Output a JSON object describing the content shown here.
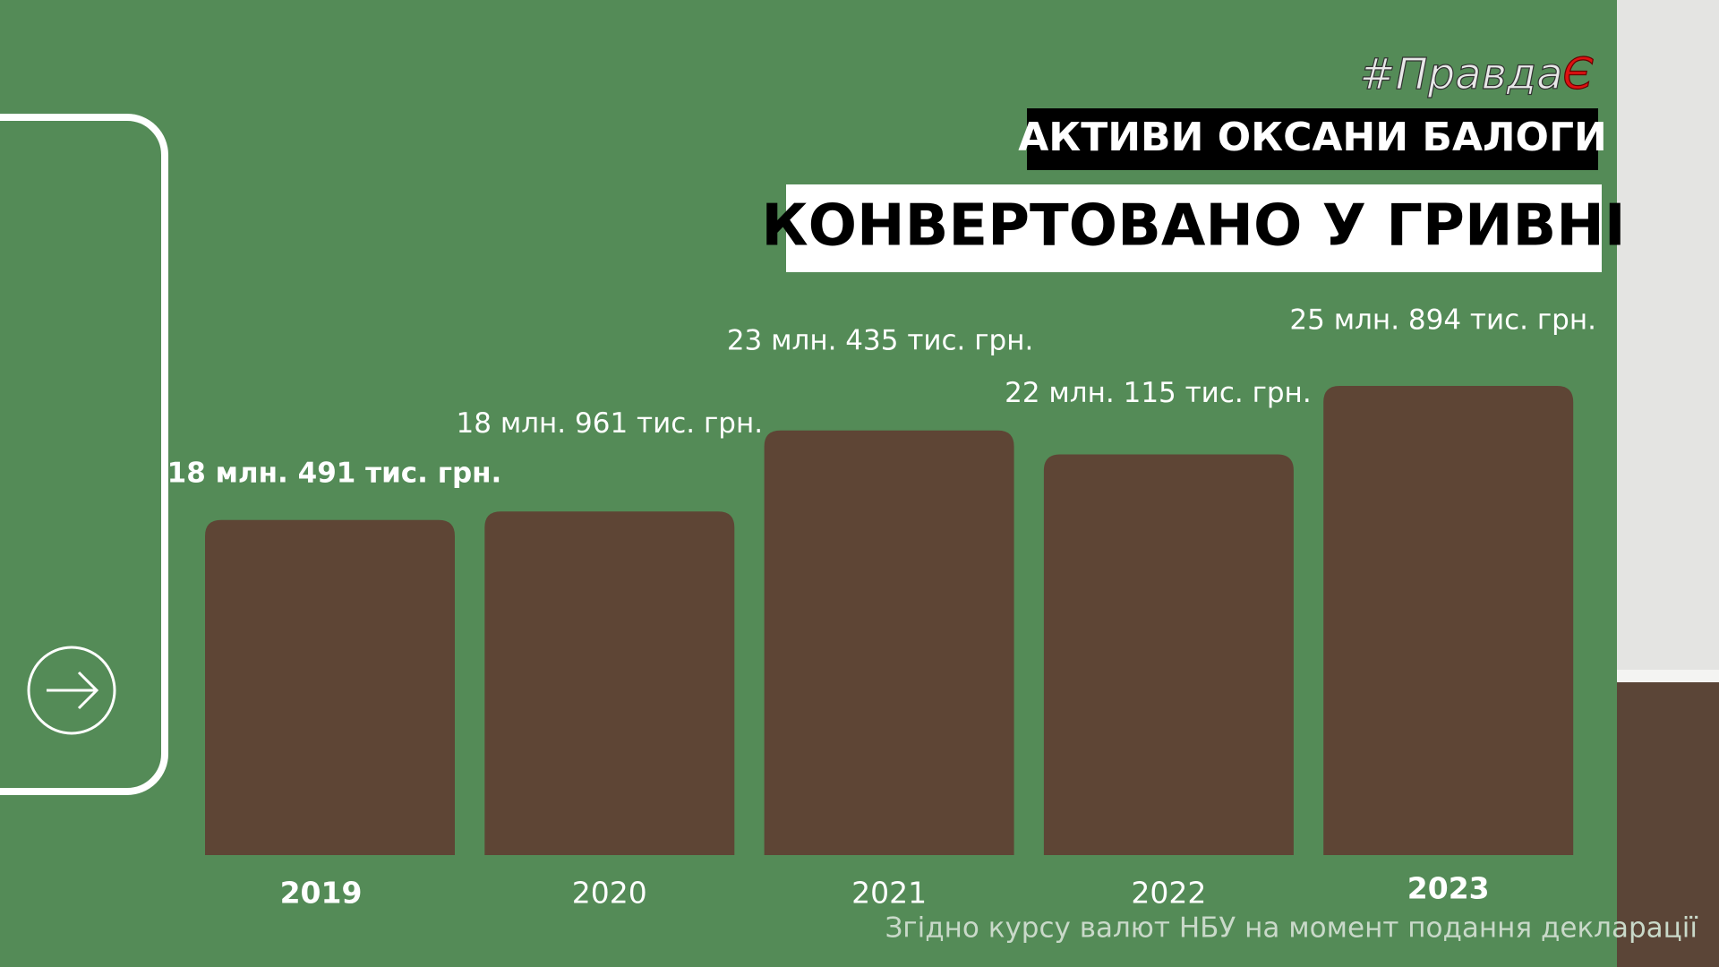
{
  "chart_data": {
    "type": "bar",
    "brand": "#Правда",
    "brand_mark": "Є",
    "subtitle": "АКТИВИ ОКСАНИ БАЛОГИ",
    "title": "КОНВЕРТОВАНО У ГРИВНІ",
    "note": "Згідно курсу валют НБУ на момент подання декларації",
    "categories": [
      "2019",
      "2020",
      "2021",
      "2022",
      "2023"
    ],
    "values": [
      18491000,
      18961000,
      23435000,
      22115000,
      25894000
    ],
    "value_labels": [
      "18 млн. 491 тис. грн.",
      "18 млн. 961 тис. грн.",
      "23 млн. 435 тис. грн.",
      "22 млн. 115 тис. грн.",
      "25 млн. 894 тис. грн."
    ],
    "color": "#5e4535"
  }
}
